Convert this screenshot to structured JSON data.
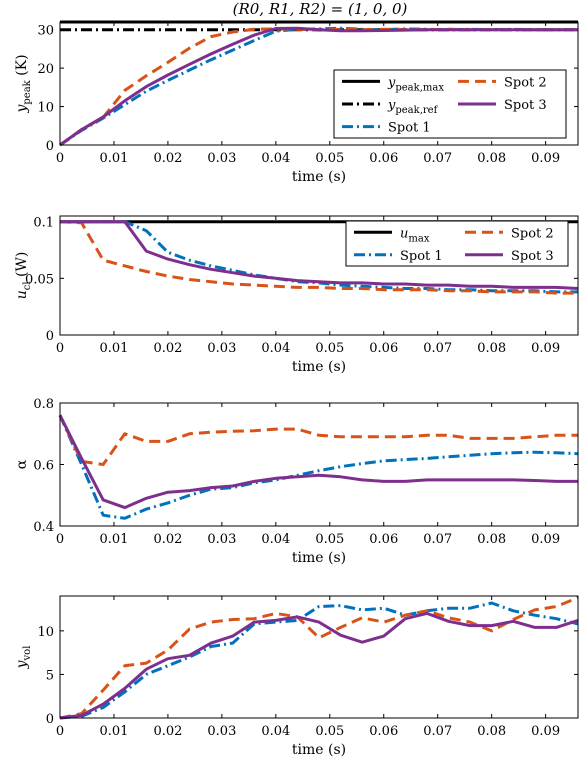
{
  "colors": {
    "peak_max": "#000000",
    "peak_ref": "#000000",
    "spot1": "#0072bd",
    "spot2": "#d95319",
    "spot3": "#7e2f8e"
  },
  "chart_data": [
    {
      "type": "line",
      "title": "(R0, R1, R2) = (1, 0, 0)",
      "xlabel": "time (s)",
      "ylabel": "y_peak (K)",
      "xlim": [
        0,
        0.096
      ],
      "ylim": [
        0,
        32
      ],
      "xticks": [
        0,
        0.01,
        0.02,
        0.03,
        0.04,
        0.05,
        0.06,
        0.07,
        0.08,
        0.09
      ],
      "xtick_labels": [
        "0",
        "0.01",
        "0.02",
        "0.03",
        "0.04",
        "0.05",
        "0.06",
        "0.07",
        "0.08",
        "0.09"
      ],
      "yticks": [
        0,
        10,
        20,
        30
      ],
      "ytick_labels": [
        "0",
        "10",
        "20",
        "30"
      ],
      "legend": "inside lower-right",
      "series": [
        {
          "name": "y_peak,max",
          "style": "solid",
          "color_key": "peak_max",
          "x": [
            0,
            0.096
          ],
          "y": [
            32,
            32
          ]
        },
        {
          "name": "y_peak,ref",
          "style": "dashdot",
          "color_key": "peak_ref",
          "x": [
            0,
            0.096
          ],
          "y": [
            30,
            30
          ]
        },
        {
          "name": "Spot 1",
          "style": "dashdot",
          "color_key": "spot1",
          "x": [
            0,
            0.004,
            0.008,
            0.012,
            0.016,
            0.02,
            0.024,
            0.028,
            0.032,
            0.036,
            0.04,
            0.044,
            0.048,
            0.052,
            0.056,
            0.06,
            0.064,
            0.068,
            0.072,
            0.076,
            0.08,
            0.084,
            0.088,
            0.092,
            0.096
          ],
          "y": [
            0,
            3.8,
            7,
            10.5,
            14,
            16.8,
            19.5,
            22.2,
            24.7,
            27.2,
            29.6,
            30.1,
            30.2,
            30.4,
            30.1,
            30.0,
            30.2,
            30.1,
            30.0,
            30.1,
            30.0,
            30.1,
            30.0,
            30.0,
            30.0
          ]
        },
        {
          "name": "Spot 2",
          "style": "dashed",
          "color_key": "spot2",
          "x": [
            0,
            0.004,
            0.008,
            0.012,
            0.016,
            0.02,
            0.024,
            0.028,
            0.032,
            0.036,
            0.04,
            0.044,
            0.048,
            0.052,
            0.056,
            0.06,
            0.064,
            0.068,
            0.072,
            0.076,
            0.08,
            0.084,
            0.088,
            0.092,
            0.096
          ],
          "y": [
            0,
            4,
            7.2,
            14.2,
            18,
            21.5,
            25.2,
            28.2,
            29.4,
            30.1,
            30.2,
            30.1,
            29.9,
            30.1,
            30.0,
            30.1,
            30.0,
            30.0,
            30.1,
            30.0,
            30.0,
            30.0,
            30.0,
            30.0,
            30.0
          ]
        },
        {
          "name": "Spot 3",
          "style": "solid",
          "color_key": "spot3",
          "x": [
            0,
            0.004,
            0.008,
            0.012,
            0.016,
            0.02,
            0.024,
            0.028,
            0.032,
            0.036,
            0.04,
            0.044,
            0.048,
            0.052,
            0.056,
            0.06,
            0.064,
            0.068,
            0.072,
            0.076,
            0.08,
            0.084,
            0.088,
            0.092,
            0.096
          ],
          "y": [
            0,
            4,
            7.3,
            11.5,
            15.2,
            18.2,
            21,
            23.7,
            26.2,
            28.6,
            30.3,
            30.4,
            30.0,
            29.7,
            29.7,
            29.8,
            29.9,
            30.0,
            30.0,
            30.0,
            30.0,
            30.0,
            30.0,
            30.0,
            30.0
          ]
        }
      ]
    },
    {
      "type": "line",
      "xlabel": "time (s)",
      "ylabel": "u_cl (W)",
      "xlim": [
        0,
        0.096
      ],
      "ylim": [
        0,
        0.105
      ],
      "xticks": [
        0,
        0.01,
        0.02,
        0.03,
        0.04,
        0.05,
        0.06,
        0.07,
        0.08,
        0.09
      ],
      "xtick_labels": [
        "0",
        "0.01",
        "0.02",
        "0.03",
        "0.04",
        "0.05",
        "0.06",
        "0.07",
        "0.08",
        "0.09"
      ],
      "yticks": [
        0,
        0.05,
        0.1
      ],
      "ytick_labels": [
        "0",
        "0.05",
        "0.1"
      ],
      "legend": "inside top-right",
      "series": [
        {
          "name": "u_max",
          "style": "solid",
          "color_key": "peak_max",
          "x": [
            0,
            0.096
          ],
          "y": [
            0.1,
            0.1
          ]
        },
        {
          "name": "Spot 1",
          "style": "dashdot",
          "color_key": "spot1",
          "x": [
            0,
            0.004,
            0.008,
            0.012,
            0.016,
            0.02,
            0.024,
            0.028,
            0.032,
            0.036,
            0.04,
            0.044,
            0.048,
            0.052,
            0.056,
            0.06,
            0.064,
            0.068,
            0.072,
            0.076,
            0.08,
            0.084,
            0.088,
            0.092,
            0.096
          ],
          "y": [
            0.1,
            0.1,
            0.1,
            0.1,
            0.092,
            0.073,
            0.066,
            0.061,
            0.057,
            0.053,
            0.05,
            0.047,
            0.046,
            0.044,
            0.043,
            0.042,
            0.041,
            0.041,
            0.04,
            0.04,
            0.039,
            0.039,
            0.039,
            0.038,
            0.038
          ]
        },
        {
          "name": "Spot 2",
          "style": "dashed",
          "color_key": "spot2",
          "x": [
            0,
            0.004,
            0.008,
            0.012,
            0.016,
            0.02,
            0.024,
            0.028,
            0.032,
            0.036,
            0.04,
            0.044,
            0.048,
            0.052,
            0.056,
            0.06,
            0.064,
            0.068,
            0.072,
            0.076,
            0.08,
            0.084,
            0.088,
            0.092,
            0.096
          ],
          "y": [
            0.1,
            0.099,
            0.066,
            0.061,
            0.056,
            0.052,
            0.049,
            0.047,
            0.045,
            0.044,
            0.043,
            0.042,
            0.042,
            0.041,
            0.041,
            0.04,
            0.04,
            0.04,
            0.039,
            0.039,
            0.038,
            0.038,
            0.038,
            0.037,
            0.037
          ]
        },
        {
          "name": "Spot 3",
          "style": "solid",
          "color_key": "spot3",
          "x": [
            0,
            0.004,
            0.008,
            0.012,
            0.016,
            0.02,
            0.024,
            0.028,
            0.032,
            0.036,
            0.04,
            0.044,
            0.048,
            0.052,
            0.056,
            0.06,
            0.064,
            0.068,
            0.072,
            0.076,
            0.08,
            0.084,
            0.088,
            0.092,
            0.096
          ],
          "y": [
            0.1,
            0.1,
            0.1,
            0.1,
            0.074,
            0.067,
            0.062,
            0.058,
            0.055,
            0.052,
            0.05,
            0.048,
            0.047,
            0.046,
            0.046,
            0.045,
            0.045,
            0.044,
            0.044,
            0.043,
            0.043,
            0.042,
            0.042,
            0.042,
            0.041
          ]
        }
      ]
    },
    {
      "type": "line",
      "xlabel": "time (s)",
      "ylabel": "α",
      "xlim": [
        0,
        0.096
      ],
      "ylim": [
        0.4,
        0.8
      ],
      "xticks": [
        0,
        0.01,
        0.02,
        0.03,
        0.04,
        0.05,
        0.06,
        0.07,
        0.08,
        0.09
      ],
      "xtick_labels": [
        "0",
        "0.01",
        "0.02",
        "0.03",
        "0.04",
        "0.05",
        "0.06",
        "0.07",
        "0.08",
        "0.09"
      ],
      "yticks": [
        0.4,
        0.6,
        0.8
      ],
      "ytick_labels": [
        "0.4",
        "0.6",
        "0.8"
      ],
      "series": [
        {
          "name": "Spot 1",
          "style": "dashdot",
          "color_key": "spot1",
          "x": [
            0,
            0.004,
            0.008,
            0.012,
            0.016,
            0.02,
            0.024,
            0.028,
            0.032,
            0.036,
            0.04,
            0.044,
            0.048,
            0.052,
            0.056,
            0.06,
            0.064,
            0.068,
            0.072,
            0.076,
            0.08,
            0.084,
            0.088,
            0.092,
            0.096
          ],
          "y": [
            0.76,
            0.6,
            0.435,
            0.425,
            0.455,
            0.475,
            0.5,
            0.52,
            0.525,
            0.54,
            0.55,
            0.565,
            0.58,
            0.593,
            0.603,
            0.612,
            0.616,
            0.62,
            0.625,
            0.63,
            0.635,
            0.638,
            0.64,
            0.638,
            0.635
          ]
        },
        {
          "name": "Spot 2",
          "style": "dashed",
          "color_key": "spot2",
          "x": [
            0,
            0.004,
            0.008,
            0.012,
            0.016,
            0.02,
            0.024,
            0.028,
            0.032,
            0.036,
            0.04,
            0.044,
            0.048,
            0.052,
            0.056,
            0.06,
            0.064,
            0.068,
            0.072,
            0.076,
            0.08,
            0.084,
            0.088,
            0.092,
            0.096
          ],
          "y": [
            0.76,
            0.61,
            0.6,
            0.7,
            0.675,
            0.675,
            0.7,
            0.705,
            0.708,
            0.71,
            0.715,
            0.715,
            0.695,
            0.69,
            0.69,
            0.69,
            0.69,
            0.695,
            0.695,
            0.685,
            0.685,
            0.685,
            0.69,
            0.695,
            0.695
          ]
        },
        {
          "name": "Spot 3",
          "style": "solid",
          "color_key": "spot3",
          "x": [
            0,
            0.004,
            0.008,
            0.012,
            0.016,
            0.02,
            0.024,
            0.028,
            0.032,
            0.036,
            0.04,
            0.044,
            0.048,
            0.052,
            0.056,
            0.06,
            0.064,
            0.068,
            0.072,
            0.076,
            0.08,
            0.084,
            0.088,
            0.092,
            0.096
          ],
          "y": [
            0.76,
            0.62,
            0.485,
            0.46,
            0.49,
            0.51,
            0.515,
            0.525,
            0.53,
            0.545,
            0.555,
            0.56,
            0.565,
            0.56,
            0.55,
            0.545,
            0.545,
            0.55,
            0.55,
            0.55,
            0.55,
            0.55,
            0.548,
            0.545,
            0.545
          ]
        }
      ]
    },
    {
      "type": "line",
      "xlabel": "time (s)",
      "ylabel": "y_vol",
      "xlim": [
        0,
        0.096
      ],
      "ylim": [
        0,
        14
      ],
      "xticks": [
        0,
        0.01,
        0.02,
        0.03,
        0.04,
        0.05,
        0.06,
        0.07,
        0.08,
        0.09
      ],
      "xtick_labels": [
        "0",
        "0.01",
        "0.02",
        "0.03",
        "0.04",
        "0.05",
        "0.06",
        "0.07",
        "0.08",
        "0.09"
      ],
      "yticks": [
        0,
        5,
        10
      ],
      "ytick_labels": [
        "0",
        "5",
        "10"
      ],
      "series": [
        {
          "name": "Spot 1",
          "style": "dashdot",
          "color_key": "spot1",
          "x": [
            0,
            0.004,
            0.008,
            0.012,
            0.016,
            0.02,
            0.024,
            0.028,
            0.032,
            0.036,
            0.04,
            0.044,
            0.048,
            0.052,
            0.056,
            0.06,
            0.064,
            0.068,
            0.072,
            0.076,
            0.08,
            0.084,
            0.088,
            0.092,
            0.096
          ],
          "y": [
            0,
            0.2,
            1.2,
            3,
            5,
            6,
            7,
            8.2,
            8.6,
            10.8,
            11,
            11.2,
            12.8,
            12.9,
            12.4,
            12.6,
            11.8,
            12.3,
            12.6,
            12.6,
            13.2,
            12.3,
            11.8,
            11.4,
            10.8
          ]
        },
        {
          "name": "Spot 2",
          "style": "dashed",
          "color_key": "spot2",
          "x": [
            0,
            0.004,
            0.008,
            0.012,
            0.016,
            0.02,
            0.024,
            0.028,
            0.032,
            0.036,
            0.04,
            0.044,
            0.048,
            0.052,
            0.056,
            0.06,
            0.064,
            0.068,
            0.072,
            0.076,
            0.08,
            0.084,
            0.088,
            0.092,
            0.096
          ],
          "y": [
            0,
            0.5,
            3.2,
            6,
            6.3,
            7.8,
            10.2,
            11,
            11.3,
            11.4,
            12,
            11.6,
            9.2,
            10.4,
            11.5,
            11,
            11.8,
            12.3,
            11.5,
            11,
            10,
            11.3,
            12.4,
            12.8,
            13.8
          ]
        },
        {
          "name": "Spot 3",
          "style": "solid",
          "color_key": "spot3",
          "x": [
            0,
            0.004,
            0.008,
            0.012,
            0.016,
            0.02,
            0.024,
            0.028,
            0.032,
            0.036,
            0.04,
            0.044,
            0.048,
            0.052,
            0.056,
            0.06,
            0.064,
            0.068,
            0.072,
            0.076,
            0.08,
            0.084,
            0.088,
            0.092,
            0.096
          ],
          "y": [
            0,
            0.3,
            1.6,
            3.4,
            5.6,
            6.8,
            7.2,
            8.6,
            9.4,
            11,
            11.2,
            11.6,
            11,
            9.5,
            8.7,
            9.4,
            11.4,
            12,
            11.1,
            10.6,
            10.6,
            11.1,
            10.4,
            10.4,
            11.2
          ]
        }
      ]
    }
  ]
}
